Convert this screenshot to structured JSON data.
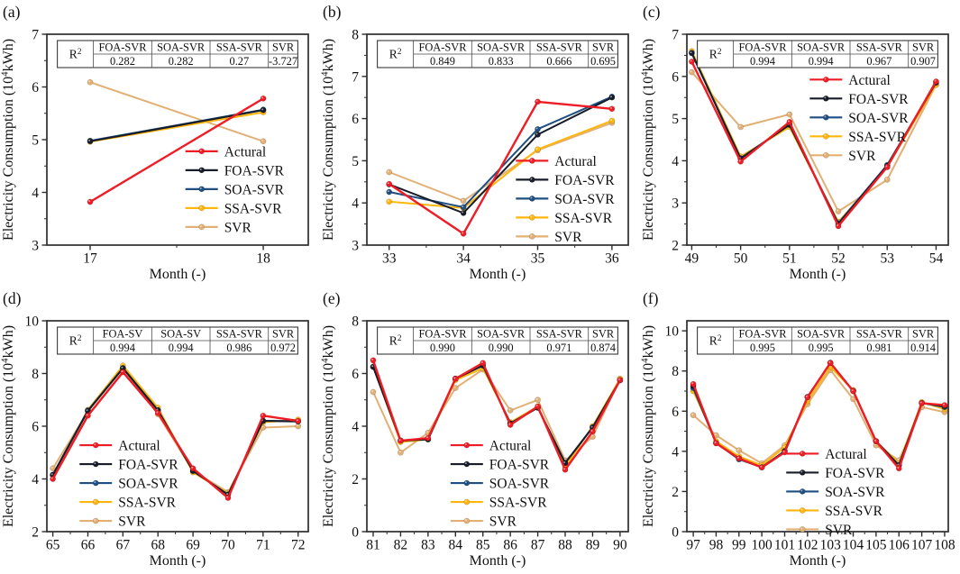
{
  "figure": {
    "background": "#ffffff",
    "axis_color": "#2d2d2d",
    "xlabel": "Month (-)",
    "ylabel": {
      "prefix": "Electricity Consumption (10",
      "sup": "4",
      "suffix": "kWh)"
    },
    "r2_label": {
      "base": "R",
      "sup": "2"
    }
  },
  "chart_data": [
    {
      "type": "line",
      "panel": "(a)",
      "xlabel": "Month (-)",
      "xlim": [
        16.75,
        18.26
      ],
      "ylim": [
        3,
        7
      ],
      "yticks": [
        3,
        4,
        5,
        6,
        7
      ],
      "x": [
        17,
        18
      ],
      "r2_table": {
        "headers": [
          "FOA-SVR",
          "SOA-SVR",
          "SSA-SVR",
          "SVR"
        ],
        "values": [
          "0.282",
          "0.282",
          "0.27",
          "-3.727"
        ]
      },
      "series": [
        {
          "name": "Actural",
          "color": "#EE1C25",
          "values": [
            3.82,
            5.78
          ]
        },
        {
          "name": "FOA-SVR",
          "color": "#171C28",
          "values": [
            4.97,
            5.56
          ]
        },
        {
          "name": "SOA-SVR",
          "color": "#1F4E80",
          "values": [
            4.98,
            5.57
          ]
        },
        {
          "name": "SSA-SVR",
          "color": "#FFB60D",
          "values": [
            4.96,
            5.52
          ]
        },
        {
          "name": "SVR",
          "color": "#E2AF74",
          "values": [
            6.09,
            4.97
          ]
        }
      ],
      "legend_frac": [
        0.53,
        0.555
      ]
    },
    {
      "type": "line",
      "panel": "(b)",
      "xlabel": "Month (-)",
      "xlim": [
        32.7,
        36.22
      ],
      "ylim": [
        3,
        8
      ],
      "yticks": [
        3,
        4,
        5,
        6,
        7,
        8
      ],
      "x": [
        33,
        34,
        35,
        36
      ],
      "r2_table": {
        "headers": [
          "FOA-SVR",
          "SOA-SVR",
          "SSA-SVR",
          "SVR"
        ],
        "values": [
          "0.849",
          "0.833",
          "0.666",
          "0.695"
        ]
      },
      "series": [
        {
          "name": "Actural",
          "color": "#EE1C25",
          "values": [
            4.45,
            3.27,
            6.4,
            6.23
          ]
        },
        {
          "name": "FOA-SVR",
          "color": "#171C28",
          "values": [
            4.44,
            3.76,
            5.62,
            6.5
          ]
        },
        {
          "name": "SOA-SVR",
          "color": "#1F4E80",
          "values": [
            4.26,
            3.9,
            5.75,
            6.52
          ]
        },
        {
          "name": "SSA-SVR",
          "color": "#FFB60D",
          "values": [
            4.03,
            3.88,
            5.27,
            5.95
          ]
        },
        {
          "name": "SVR",
          "color": "#E2AF74",
          "values": [
            4.73,
            4.05,
            5.25,
            5.9
          ]
        }
      ],
      "legend_frac": [
        0.57,
        0.6
      ]
    },
    {
      "type": "line",
      "panel": "(c)",
      "xlabel": "Month (-)",
      "xlim": [
        48.9,
        54.25
      ],
      "ylim": [
        2,
        7
      ],
      "yticks": [
        2,
        3,
        4,
        5,
        6,
        7
      ],
      "x": [
        49,
        50,
        51,
        52,
        53,
        54
      ],
      "r2_table": {
        "headers": [
          "FOA-SVR",
          "SOA-SVR",
          "SSA-SVR",
          "SVR"
        ],
        "values": [
          "0.994",
          "0.994",
          "0.967",
          "0.907"
        ]
      },
      "series": [
        {
          "name": "Actural",
          "color": "#EE1C25",
          "values": [
            6.35,
            3.98,
            4.92,
            2.45,
            3.85,
            5.88
          ]
        },
        {
          "name": "FOA-SVR",
          "color": "#171C28",
          "values": [
            6.55,
            4.05,
            4.85,
            2.5,
            3.88,
            5.85
          ]
        },
        {
          "name": "SOA-SVR",
          "color": "#1F4E80",
          "values": [
            6.56,
            4.06,
            4.86,
            2.52,
            3.9,
            5.86
          ]
        },
        {
          "name": "SSA-SVR",
          "color": "#FFB60D",
          "values": [
            6.6,
            4.1,
            4.8,
            2.55,
            3.85,
            5.8
          ]
        },
        {
          "name": "SVR",
          "color": "#E2AF74",
          "values": [
            6.1,
            4.8,
            5.1,
            2.8,
            3.55,
            5.8
          ]
        }
      ],
      "legend_frac": [
        0.47,
        0.215
      ]
    },
    {
      "type": "line",
      "panel": "(d)",
      "xlabel": "Month (-)",
      "xlim": [
        64.83,
        72.29
      ],
      "ylim": [
        2,
        10
      ],
      "yticks": [
        2,
        4,
        6,
        8,
        10
      ],
      "x": [
        65,
        66,
        67,
        68,
        69,
        70,
        71,
        72
      ],
      "r2_table": {
        "headers": [
          "FOA-SV",
          "SOA-SV",
          "SSA-SVR",
          "SVR"
        ],
        "values": [
          "0.994",
          "0.994",
          "0.986",
          "0.972"
        ]
      },
      "series": [
        {
          "name": "Actural",
          "color": "#EE1C25",
          "values": [
            4.0,
            6.4,
            8.05,
            6.5,
            4.4,
            3.28,
            6.4,
            6.2
          ]
        },
        {
          "name": "FOA-SVR",
          "color": "#171C28",
          "values": [
            4.15,
            6.58,
            8.2,
            6.6,
            4.3,
            3.4,
            6.2,
            6.18
          ]
        },
        {
          "name": "SOA-SVR",
          "color": "#1F4E80",
          "values": [
            4.16,
            6.6,
            8.21,
            6.61,
            4.31,
            3.41,
            6.21,
            6.19
          ]
        },
        {
          "name": "SSA-SVR",
          "color": "#FFB60D",
          "values": [
            4.15,
            6.62,
            8.3,
            6.7,
            4.25,
            3.45,
            6.15,
            6.25
          ]
        },
        {
          "name": "SVR",
          "color": "#E2AF74",
          "values": [
            4.4,
            6.55,
            8.2,
            6.45,
            4.3,
            3.5,
            5.95,
            6.0
          ]
        }
      ],
      "legend_frac": [
        0.125,
        0.59
      ]
    },
    {
      "type": "line",
      "panel": "(e)",
      "xlabel": "Month (-)",
      "xlim": [
        80.77,
        90.3
      ],
      "ylim": [
        0,
        8
      ],
      "yticks": [
        0,
        2,
        4,
        6,
        8
      ],
      "x": [
        81,
        82,
        83,
        84,
        85,
        86,
        87,
        88,
        89,
        90
      ],
      "r2_table": {
        "headers": [
          "FOA-SVR",
          "SOA-SVR",
          "SSA-SVR",
          "SVR"
        ],
        "values": [
          "0.990",
          "0.990",
          "0.971",
          "0.874"
        ]
      },
      "series": [
        {
          "name": "Actural",
          "color": "#EE1C25",
          "values": [
            6.5,
            3.45,
            3.55,
            5.8,
            6.4,
            4.05,
            4.75,
            2.35,
            3.8,
            5.75
          ]
        },
        {
          "name": "FOA-SVR",
          "color": "#171C28",
          "values": [
            6.25,
            3.45,
            3.5,
            5.8,
            6.3,
            4.1,
            4.7,
            2.6,
            3.95,
            5.74
          ]
        },
        {
          "name": "SOA-SVR",
          "color": "#1F4E80",
          "values": [
            6.26,
            3.46,
            3.51,
            5.81,
            6.31,
            4.11,
            4.71,
            2.61,
            3.96,
            5.75
          ]
        },
        {
          "name": "SSA-SVR",
          "color": "#FFB60D",
          "values": [
            6.25,
            3.4,
            3.5,
            5.75,
            6.2,
            4.15,
            4.75,
            2.45,
            4.0,
            5.8
          ]
        },
        {
          "name": "SVR",
          "color": "#E2AF74",
          "values": [
            5.3,
            3.0,
            3.75,
            5.45,
            6.15,
            4.6,
            5.0,
            2.7,
            3.6,
            5.8
          ]
        }
      ],
      "legend_frac": [
        0.32,
        0.59
      ]
    },
    {
      "type": "line",
      "panel": "(f)",
      "xlabel": "Month (-)",
      "xlim": [
        96.72,
        108.16
      ],
      "ylim": [
        0,
        10.5
      ],
      "yticks": [
        0,
        2,
        4,
        6,
        8,
        10
      ],
      "x": [
        97,
        98,
        99,
        100,
        101,
        102,
        103,
        104,
        105,
        106,
        107,
        108
      ],
      "r2_table": {
        "headers": [
          "FOA-SVR",
          "SOA-SVR",
          "SSA-SVR",
          "SVR"
        ],
        "values": [
          "0.995",
          "0.995",
          "0.981",
          "0.914"
        ]
      },
      "series": [
        {
          "name": "Actural",
          "color": "#EE1C25",
          "values": [
            7.35,
            4.4,
            3.65,
            3.2,
            3.95,
            6.7,
            8.4,
            7.0,
            4.5,
            3.15,
            6.4,
            6.3
          ]
        },
        {
          "name": "FOA-SVR",
          "color": "#171C28",
          "values": [
            7.25,
            4.4,
            3.65,
            3.2,
            4.0,
            6.7,
            8.4,
            7.0,
            4.5,
            3.3,
            6.4,
            6.25
          ]
        },
        {
          "name": "SOA-SVR",
          "color": "#1F4E80",
          "values": [
            7.15,
            4.41,
            3.6,
            3.21,
            4.01,
            6.71,
            8.41,
            7.01,
            4.51,
            3.31,
            6.41,
            6.2
          ]
        },
        {
          "name": "SSA-SVR",
          "color": "#FFB60D",
          "values": [
            7.0,
            4.5,
            3.75,
            3.3,
            4.2,
            6.5,
            8.2,
            7.05,
            4.5,
            3.4,
            6.45,
            6.1
          ]
        },
        {
          "name": "SVR",
          "color": "#E2AF74",
          "values": [
            5.8,
            4.8,
            4.05,
            3.4,
            4.3,
            6.35,
            8.05,
            6.6,
            4.3,
            3.55,
            6.2,
            5.95
          ]
        }
      ],
      "legend_frac": [
        0.38,
        0.63
      ]
    }
  ]
}
